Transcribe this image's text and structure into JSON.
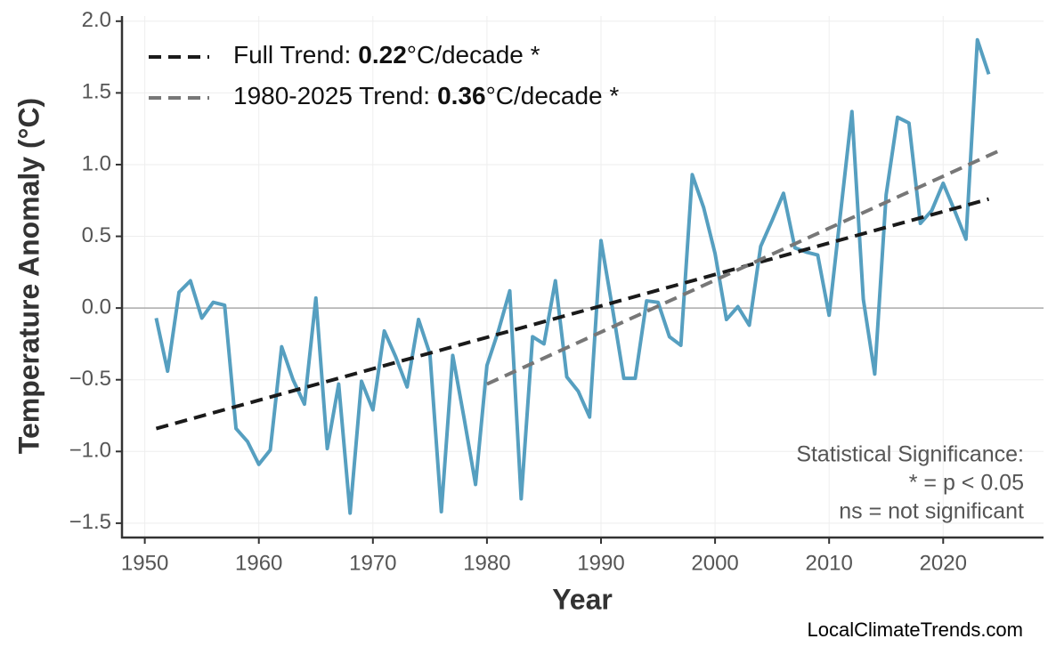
{
  "chart_data": {
    "type": "line",
    "x_label": "Year",
    "y_label": "Temperature Anomaly (°C)",
    "x": [
      1951,
      1952,
      1953,
      1954,
      1955,
      1956,
      1957,
      1958,
      1959,
      1960,
      1961,
      1962,
      1963,
      1964,
      1965,
      1966,
      1967,
      1968,
      1969,
      1970,
      1971,
      1972,
      1973,
      1974,
      1975,
      1976,
      1977,
      1978,
      1979,
      1980,
      1981,
      1982,
      1983,
      1984,
      1985,
      1986,
      1987,
      1988,
      1989,
      1990,
      1991,
      1992,
      1993,
      1994,
      1995,
      1996,
      1997,
      1998,
      1999,
      2000,
      2001,
      2002,
      2003,
      2004,
      2005,
      2006,
      2007,
      2008,
      2009,
      2010,
      2011,
      2012,
      2013,
      2014,
      2015,
      2016,
      2017,
      2018,
      2019,
      2020,
      2021,
      2022,
      2023,
      2024
    ],
    "series": [
      {
        "color": "#569fc0",
        "values": [
          -0.07,
          -0.44,
          0.11,
          0.19,
          -0.07,
          0.04,
          0.02,
          -0.84,
          -0.93,
          -1.09,
          -0.99,
          -0.27,
          -0.5,
          -0.67,
          0.07,
          -0.98,
          -0.53,
          -1.43,
          -0.51,
          -0.71,
          -0.16,
          -0.34,
          -0.55,
          -0.08,
          -0.32,
          -1.42,
          -0.33,
          -0.77,
          -1.23,
          -0.4,
          -0.16,
          0.12,
          -1.33,
          -0.2,
          -0.25,
          0.19,
          -0.48,
          -0.58,
          -0.76,
          0.47,
          0.0,
          -0.49,
          -0.49,
          0.05,
          0.04,
          -0.2,
          -0.26,
          0.93,
          0.7,
          0.38,
          -0.08,
          0.01,
          -0.12,
          0.43,
          0.61,
          0.8,
          0.42,
          0.39,
          0.37,
          -0.05,
          0.66,
          1.37,
          0.06,
          -0.46,
          0.79,
          1.33,
          1.29,
          0.59,
          0.68,
          0.87,
          0.68,
          0.48,
          1.87,
          1.63
        ]
      },
      {
        "name": "Full Trend:",
        "slope": 0.22,
        "slope_unit": "°C/decade *",
        "color": "#1a1a1a",
        "dashed": true,
        "x": [
          1951,
          2024
        ],
        "values": [
          -0.84,
          0.76
        ]
      },
      {
        "name": "1980-2025 Trend:",
        "slope": 0.36,
        "slope_unit": "°C/decade *",
        "color": "#777777",
        "dashed": true,
        "x": [
          1980,
          2025
        ],
        "values": [
          -0.53,
          1.1
        ]
      }
    ],
    "xlim": [
      1948,
      2028.8
    ],
    "ylim": [
      -1.6,
      2.036
    ],
    "xticks": [
      1950,
      1960,
      1970,
      1980,
      1990,
      2000,
      2010,
      2020
    ],
    "yticks": [
      {
        "value": -1.5,
        "label": "−1.5"
      },
      {
        "value": -1.0,
        "label": "−1.0"
      },
      {
        "value": -0.5,
        "label": "−0.5"
      },
      {
        "value": 0,
        "label": "0.0"
      },
      0.5,
      {
        "value": 1.0,
        "label": "1.0"
      },
      1.5,
      {
        "value": 2.0,
        "label": "2.0"
      }
    ],
    "grid": true,
    "zero_line": true,
    "legend": "upper left",
    "annotation": [
      "Statistical Significance:",
      "* = p < 0.05",
      "ns = not significant"
    ],
    "source": "LocalClimateTrends.com"
  }
}
